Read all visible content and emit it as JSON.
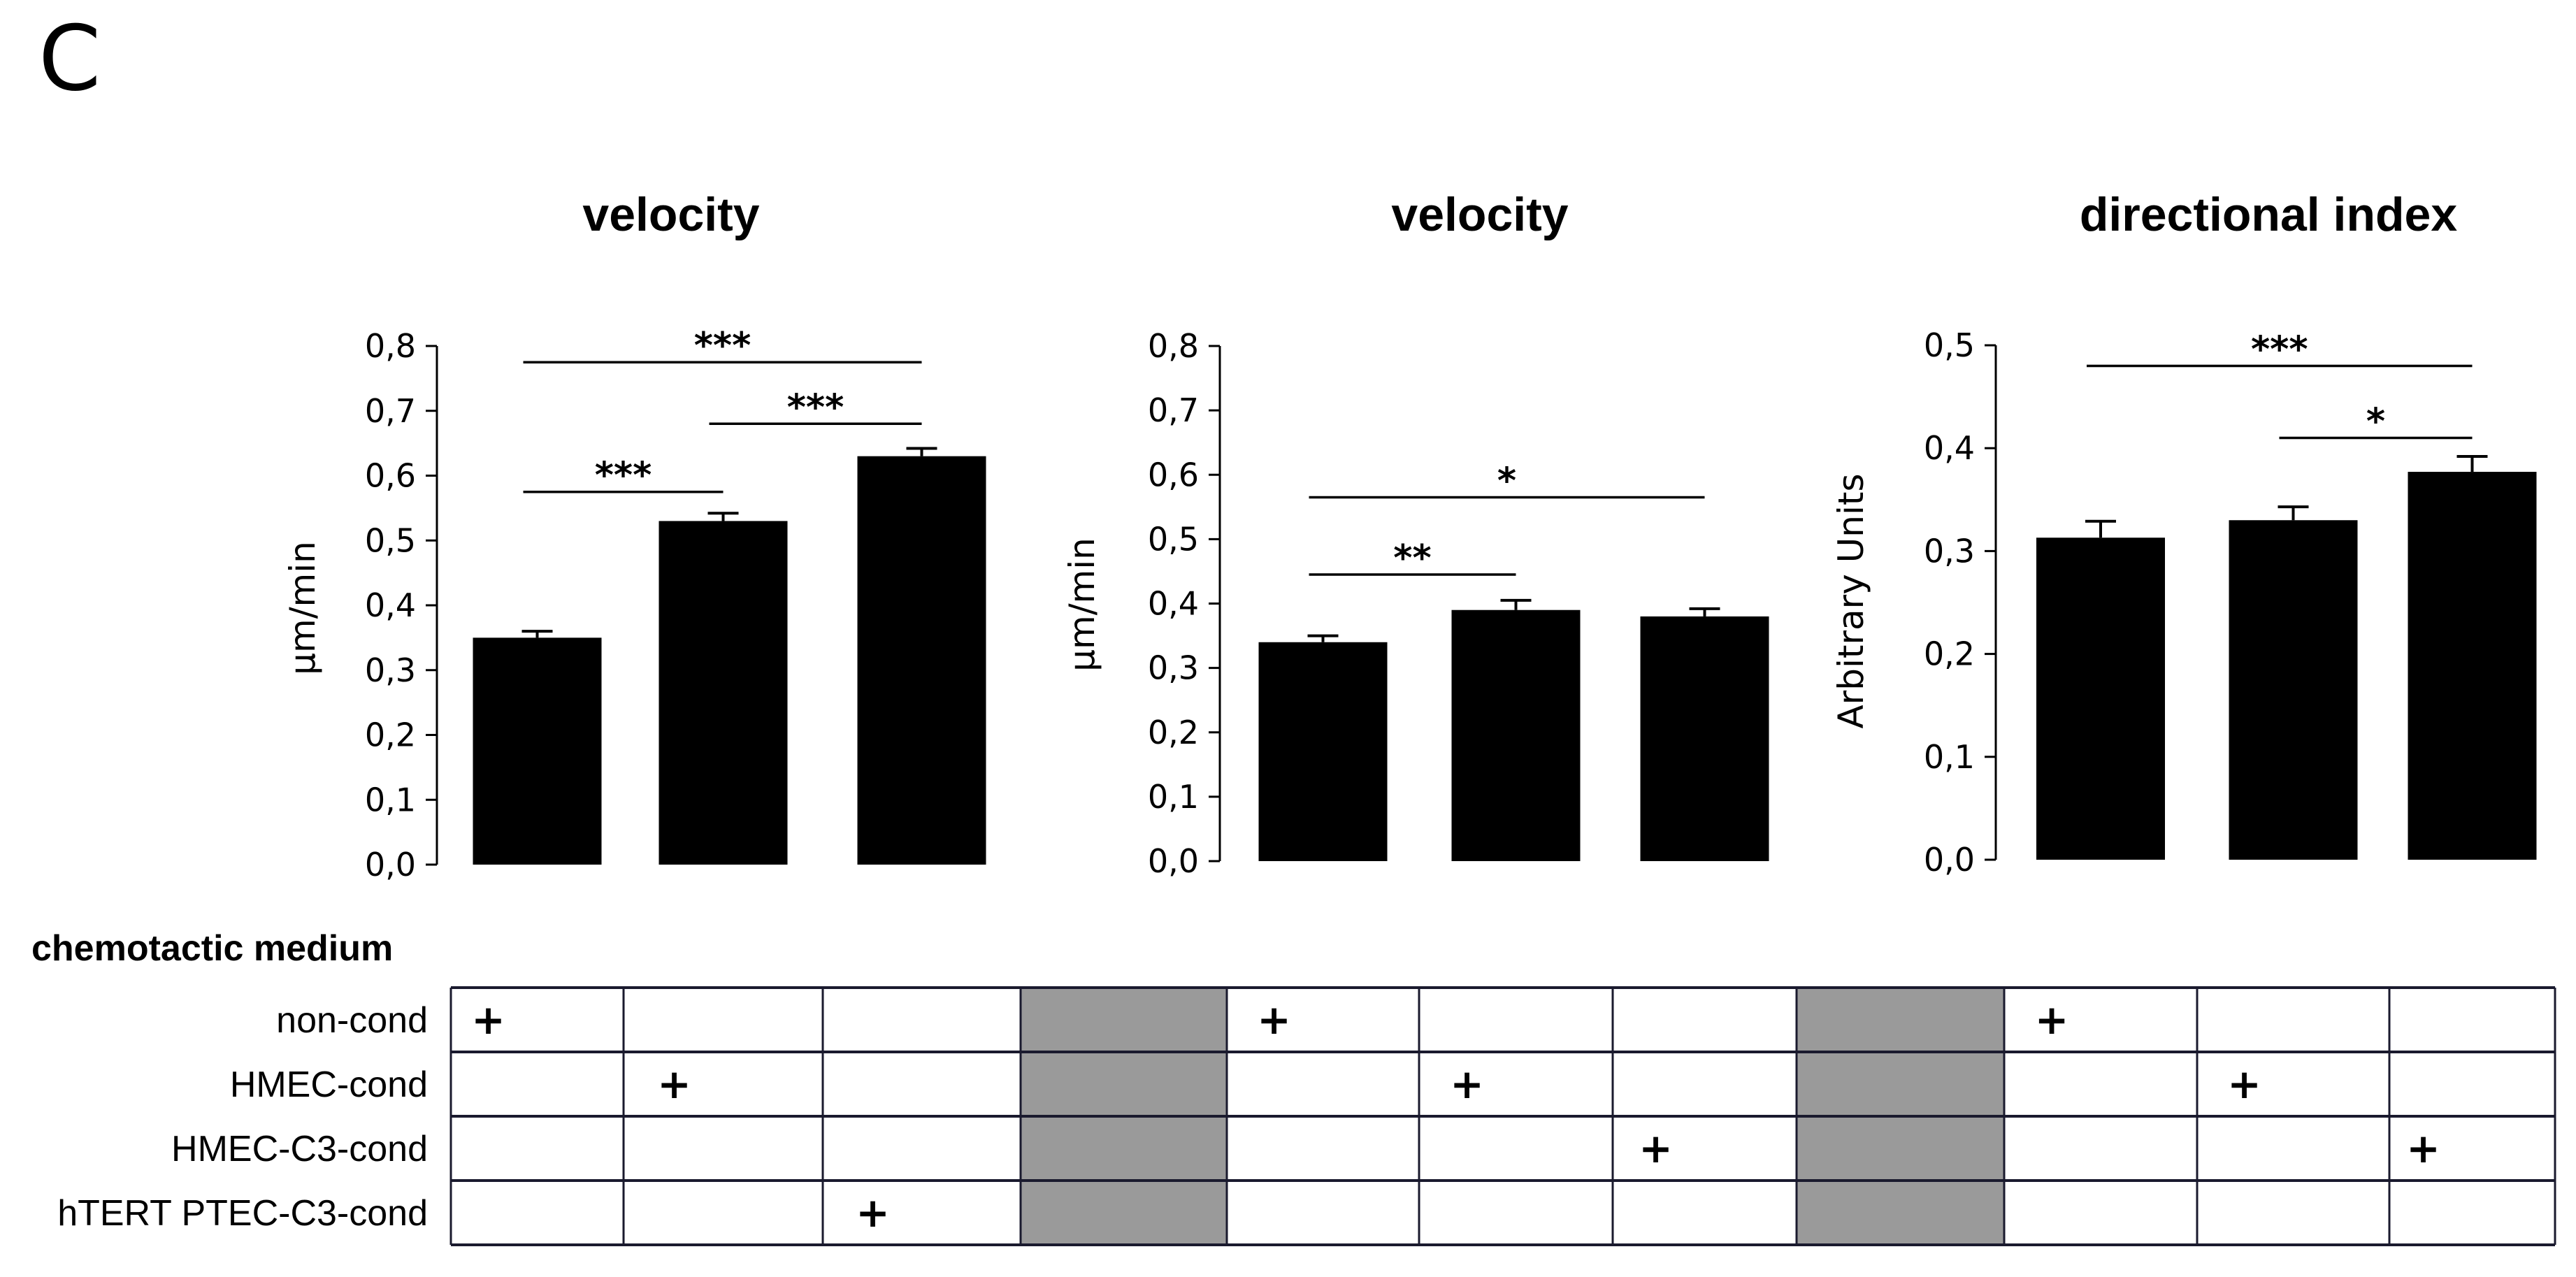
{
  "panel_label": "C",
  "chart_data": [
    {
      "type": "bar",
      "title": "velocity",
      "ylabel": "µm/min",
      "ylim": [
        0,
        0.8
      ],
      "yticks": [
        "0,0",
        "0,1",
        "0,2",
        "0,3",
        "0,4",
        "0,5",
        "0,6",
        "0,7",
        "0,8"
      ],
      "categories": [
        "non-cond",
        "HMEC-cond",
        "hTERT PTEC-C3-cond"
      ],
      "values": [
        0.35,
        0.53,
        0.63
      ],
      "errors": [
        0.01,
        0.012,
        0.012
      ],
      "significance": [
        {
          "from": 0,
          "to": 2,
          "label": "***",
          "y": 0.775
        },
        {
          "from": 1,
          "to": 2,
          "label": "***",
          "y": 0.68
        },
        {
          "from": 0,
          "to": 1,
          "label": "***",
          "y": 0.575
        }
      ]
    },
    {
      "type": "bar",
      "title": "velocity",
      "ylabel": "µm/min",
      "ylim": [
        0,
        0.8
      ],
      "yticks": [
        "0,0",
        "0,1",
        "0,2",
        "0,3",
        "0,4",
        "0,5",
        "0,6",
        "0,7",
        "0,8"
      ],
      "categories": [
        "non-cond",
        "HMEC-cond",
        "HMEC-C3-cond"
      ],
      "values": [
        0.34,
        0.39,
        0.38
      ],
      "errors": [
        0.01,
        0.015,
        0.012
      ],
      "significance": [
        {
          "from": 0,
          "to": 2,
          "label": "*",
          "y": 0.565
        },
        {
          "from": 0,
          "to": 1,
          "label": "**",
          "y": 0.445
        }
      ]
    },
    {
      "type": "bar",
      "title": "directional index",
      "ylabel": "Arbitrary Units",
      "ylim": [
        0,
        0.5
      ],
      "yticks": [
        "0,0",
        "0,1",
        "0,2",
        "0,3",
        "0,4",
        "0,5"
      ],
      "categories": [
        "non-cond",
        "HMEC-cond",
        "HMEC-C3-cond"
      ],
      "values": [
        0.313,
        0.33,
        0.377
      ],
      "errors": [
        0.016,
        0.013,
        0.015
      ],
      "significance": [
        {
          "from": 0,
          "to": 2,
          "label": "***",
          "y": 0.48
        },
        {
          "from": 1,
          "to": 2,
          "label": "*",
          "y": 0.41
        }
      ]
    }
  ],
  "medium_table": {
    "heading": "chemotactic medium",
    "rows": [
      "non-cond",
      "HMEC-cond",
      "HMEC-C3-cond",
      "hTERT PTEC-C3-cond"
    ],
    "mark": "+",
    "marks": [
      [
        0,
        0
      ],
      [
        1,
        1
      ],
      [
        3,
        2
      ],
      [
        0,
        4
      ],
      [
        1,
        5
      ],
      [
        2,
        6
      ],
      [
        0,
        8
      ],
      [
        1,
        9
      ],
      [
        2,
        10
      ]
    ],
    "gray_columns": [
      3,
      7
    ],
    "gray_color": "#9a9a9a"
  },
  "colors": {
    "bar": "#000000",
    "line": "#000000",
    "table_border": "#1a1a2e"
  }
}
